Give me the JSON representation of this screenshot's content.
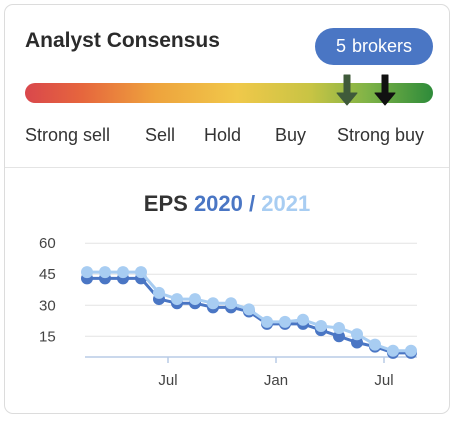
{
  "header": {
    "title": "Analyst Consensus"
  },
  "badge": {
    "count": "5",
    "label": "brokers"
  },
  "consensus": {
    "scale_labels": [
      "Strong sell",
      "Sell",
      "Hold",
      "Buy",
      "Strong buy"
    ],
    "markers": [
      {
        "name": "previous-consensus-arrow-icon",
        "color": "#3f5a3a",
        "level": 0.79
      },
      {
        "name": "current-consensus-arrow-icon",
        "color": "#111111",
        "level": 0.88
      }
    ]
  },
  "eps": {
    "title_prefix": "EPS",
    "year_1": "2020",
    "separator": "/",
    "year_2": "2021"
  },
  "chart_data": {
    "type": "line",
    "xlabel": "",
    "ylabel": "",
    "y_ticks": [
      15,
      30,
      45,
      60
    ],
    "ylim": [
      5,
      63
    ],
    "x_tick_labels": [
      {
        "label": "Jul",
        "index": 4.5
      },
      {
        "label": "Jan",
        "index": 10.5
      },
      {
        "label": "Jul",
        "index": 16.5
      }
    ],
    "grid": true,
    "series": [
      {
        "name": "2020",
        "color": "#4a76c4",
        "values": [
          43,
          43,
          43,
          43,
          33,
          31,
          31,
          29,
          29,
          27,
          21,
          21,
          21,
          18,
          15,
          12,
          10,
          7,
          7
        ]
      },
      {
        "name": "2021",
        "color": "#a8cdf2",
        "values": [
          46,
          46,
          46,
          46,
          36,
          33,
          33,
          31,
          31,
          28,
          22,
          22,
          23,
          20,
          19,
          16,
          11,
          8,
          8
        ]
      }
    ]
  }
}
